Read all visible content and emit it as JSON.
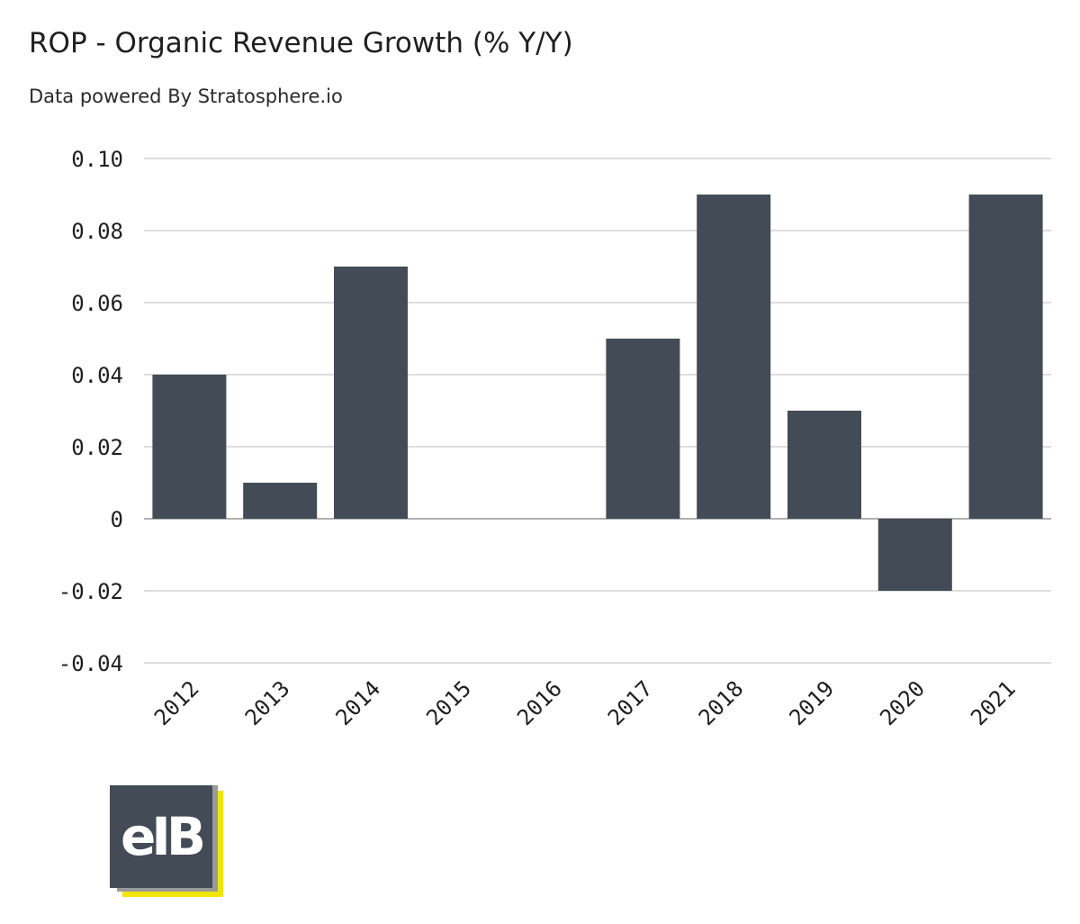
{
  "header": {
    "title": "ROP - Organic Revenue Growth (% Y/Y)",
    "subtitle": "Data powered By Stratosphere.io"
  },
  "logo": {
    "text": "eIB",
    "colors": {
      "box": "#434b57",
      "shadow": "#9a9a9a",
      "accent": "#f2e500"
    }
  },
  "colors": {
    "bar": "#434b57",
    "grid": "#d4d4d4"
  },
  "chart_data": {
    "type": "bar",
    "title": "ROP - Organic Revenue Growth (% Y/Y)",
    "subtitle": "Data powered By Stratosphere.io",
    "xlabel": "",
    "ylabel": "",
    "categories": [
      "2012",
      "2013",
      "2014",
      "2015",
      "2016",
      "2017",
      "2018",
      "2019",
      "2020",
      "2021"
    ],
    "values": [
      0.04,
      0.01,
      0.07,
      0,
      0,
      0.05,
      0.09,
      0.03,
      -0.02,
      0.09
    ],
    "ylim": [
      -0.04,
      0.1
    ],
    "yticks": [
      0.1,
      0.08,
      0.06,
      0.04,
      0.02,
      0,
      -0.02,
      -0.04
    ],
    "ytick_labels": [
      "0.10",
      "0.08",
      "0.06",
      "0.04",
      "0.02",
      "0",
      "-0.02",
      "-0.04"
    ],
    "grid": true,
    "legend": "none"
  }
}
